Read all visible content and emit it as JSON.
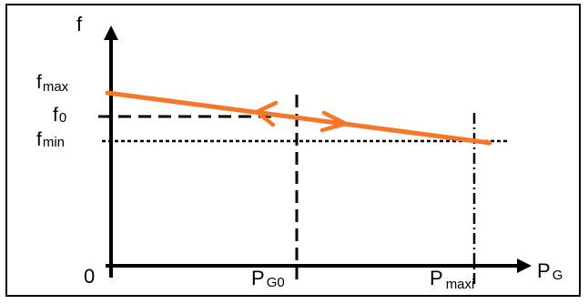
{
  "diagram": {
    "axis_labels": {
      "y": "f",
      "x_main": "P",
      "x_sub": "G",
      "origin": "0"
    },
    "y_labels": {
      "fmax_main": "f",
      "fmax_sub": "max",
      "f0_main": "f",
      "f0_sub": "0",
      "fmin_main": "f",
      "fmin_sub": "min"
    },
    "x_labels": {
      "pg0_main": "P",
      "pg0_sub": "G0",
      "pmaxi_main": "P",
      "pmaxi_sub": "maxi"
    },
    "colors": {
      "axis": "#000000",
      "droop_line": "#f5782a",
      "dashed_lines": "#000000"
    }
  }
}
